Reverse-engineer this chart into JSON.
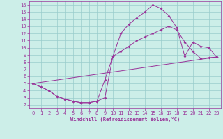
{
  "bg_color": "#cceee8",
  "line_color": "#993399",
  "grid_color": "#99cccc",
  "xlim": [
    -0.5,
    23.5
  ],
  "ylim": [
    1.5,
    16.5
  ],
  "xticks": [
    0,
    1,
    2,
    3,
    4,
    5,
    6,
    7,
    8,
    9,
    10,
    11,
    12,
    13,
    14,
    15,
    16,
    17,
    18,
    19,
    20,
    21,
    22,
    23
  ],
  "yticks": [
    2,
    3,
    4,
    5,
    6,
    7,
    8,
    9,
    10,
    11,
    12,
    13,
    14,
    15,
    16
  ],
  "xlabel": "Windchill (Refroidissement éolien,°C)",
  "line1_x": [
    0,
    1,
    2,
    3,
    4,
    5,
    6,
    7,
    8,
    9,
    10,
    11,
    12,
    13,
    14,
    15,
    16,
    17,
    18,
    19,
    20,
    21,
    22,
    23
  ],
  "line1_y": [
    5.0,
    4.5,
    4.0,
    3.2,
    2.8,
    2.5,
    2.3,
    2.3,
    2.5,
    3.0,
    8.8,
    12.0,
    13.3,
    14.2,
    15.0,
    16.0,
    15.5,
    14.5,
    12.8,
    8.8,
    10.8,
    10.2,
    10.0,
    8.7
  ],
  "line2_x": [
    0,
    1,
    2,
    3,
    4,
    5,
    6,
    7,
    8,
    9,
    10,
    11,
    12,
    13,
    14,
    15,
    16,
    17,
    18,
    19,
    20,
    21,
    22,
    23
  ],
  "line2_y": [
    5.0,
    4.5,
    4.0,
    3.2,
    2.8,
    2.5,
    2.3,
    2.3,
    2.5,
    5.5,
    8.8,
    9.5,
    10.2,
    11.0,
    11.5,
    12.0,
    12.5,
    13.0,
    12.5,
    10.8,
    9.5,
    8.5,
    8.6,
    8.7
  ],
  "line3_x": [
    0,
    23
  ],
  "line3_y": [
    5.0,
    8.7
  ],
  "marker": "D",
  "markersize": 2,
  "linewidth": 0.7,
  "tick_fontsize": 5,
  "xlabel_fontsize": 5
}
